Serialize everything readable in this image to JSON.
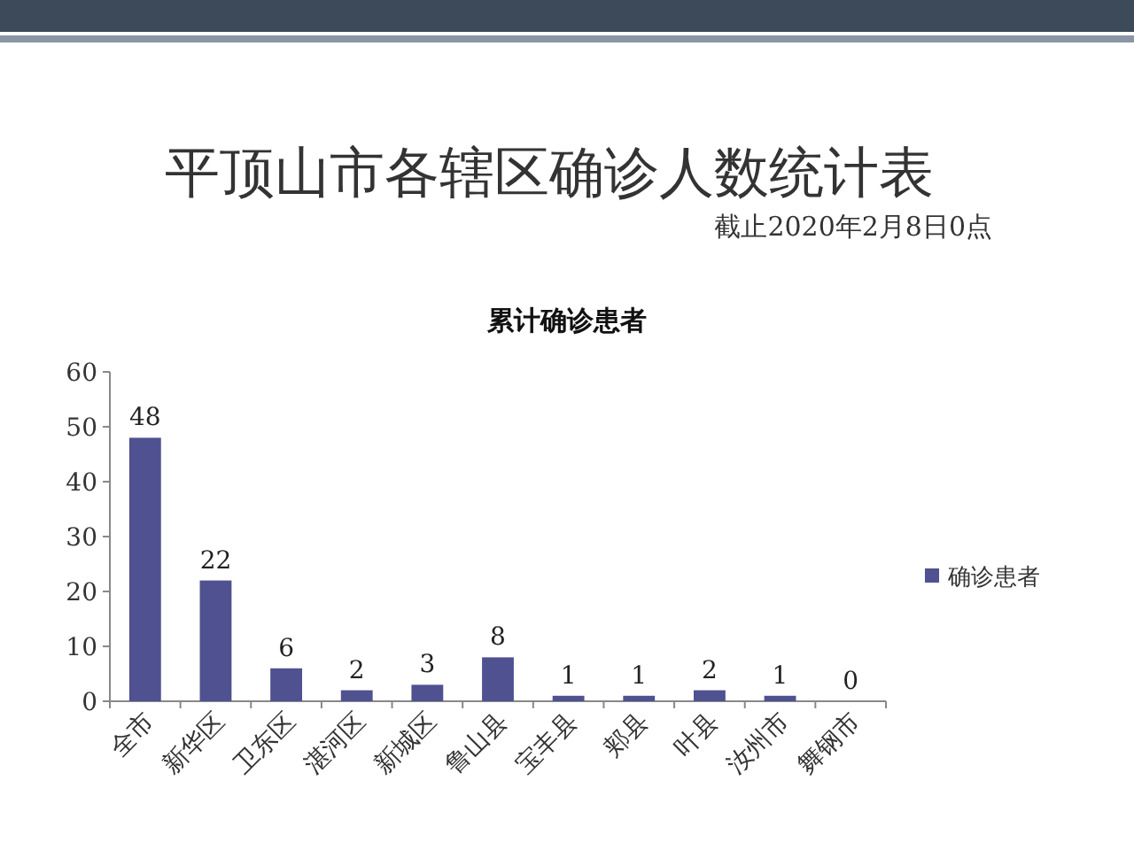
{
  "chart_data": {
    "type": "bar",
    "title": "平顶山市各辖区确诊人数统计表",
    "subtitle": "截止2020年2月8日0点",
    "annotations": [
      "累计确诊患者"
    ],
    "categories": [
      "全市",
      "新华区",
      "卫东区",
      "湛河区",
      "新城区",
      "鲁山县",
      "宝丰县",
      "郏县",
      "叶县",
      "汝州市",
      "舞钢市"
    ],
    "series": [
      {
        "name": "确诊患者",
        "color": "#4f5191",
        "values": [
          48,
          22,
          6,
          2,
          3,
          8,
          1,
          1,
          2,
          1,
          0
        ]
      }
    ],
    "ylim": [
      0,
      60
    ],
    "yticks": [
      0,
      10,
      20,
      30,
      40,
      50,
      60
    ],
    "data_labels": true,
    "legend": "right"
  }
}
